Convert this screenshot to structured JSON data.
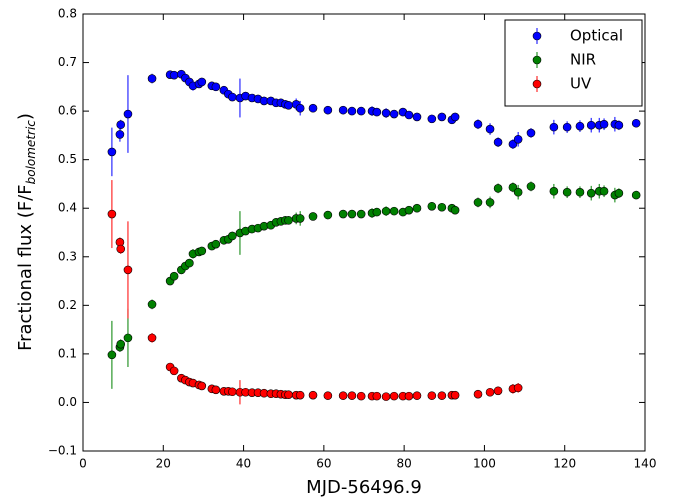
{
  "chart_data": {
    "type": "scatter",
    "xlabel": "MJD-56496.9",
    "ylabel": [
      "Fractional flux (F/F",
      "bolometric",
      ")"
    ],
    "xlim": [
      0,
      140
    ],
    "xticks": [
      0,
      20,
      40,
      60,
      80,
      100,
      120,
      140
    ],
    "ylim": [
      -0.1,
      0.8
    ],
    "yticks": [
      {
        "value": -0.1,
        "label": "−0.1"
      },
      {
        "value": 0,
        "label": "0.0"
      },
      0.1,
      0.2,
      0.3,
      0.4,
      0.5,
      0.6,
      0.7,
      0.8
    ],
    "legend": "upper right",
    "x": [
      7.2,
      9.2,
      9.4,
      11.2,
      17.2,
      21.7,
      22.7,
      24.5,
      25.5,
      26.5,
      27.4,
      28.9,
      29.6,
      32.1,
      33.1,
      35.1,
      36.2,
      37.2,
      39.1,
      40.5,
      42.1,
      43.6,
      45.1,
      46.8,
      48.1,
      49.3,
      50.4,
      51.2,
      53.1,
      54.1,
      57.3,
      61.0,
      64.8,
      67.0,
      69.3,
      72.0,
      73.2,
      75.5,
      77.5,
      79.7,
      81.2,
      83.2,
      86.9,
      89.4,
      91.9,
      92.7,
      98.4,
      101.4,
      103.4,
      107.1,
      108.4,
      111.6,
      117.3,
      120.6,
      123.8,
      126.6,
      128.6,
      129.8,
      132.5,
      133.5,
      137.8
    ],
    "series": [
      {
        "name": "Optical",
        "color": "#0000ff",
        "values": [
          0.516,
          0.552,
          0.572,
          0.594,
          0.667,
          0.675,
          0.674,
          0.676,
          0.668,
          0.66,
          0.652,
          0.656,
          0.66,
          0.652,
          0.65,
          0.643,
          0.635,
          0.629,
          0.627,
          0.631,
          0.627,
          0.625,
          0.621,
          0.621,
          0.617,
          0.617,
          0.614,
          0.612,
          0.614,
          0.606,
          0.606,
          0.602,
          0.602,
          0.6,
          0.6,
          0.6,
          0.598,
          0.596,
          0.594,
          0.598,
          0.592,
          0.588,
          0.584,
          0.588,
          0.582,
          0.588,
          0.573,
          0.563,
          0.536,
          0.532,
          0.542,
          0.555,
          0.567,
          0.567,
          0.569,
          0.571,
          0.571,
          0.573,
          0.573,
          0.571,
          0.575
        ],
        "errors": [
          0.05,
          0.015,
          0.01,
          0.08,
          0.01,
          0.008,
          0.008,
          0.008,
          0.008,
          0.008,
          0.01,
          0.008,
          0.008,
          0.008,
          0.008,
          0.008,
          0.008,
          0.008,
          0.04,
          0.008,
          0.008,
          0.008,
          0.008,
          0.008,
          0.008,
          0.008,
          0.008,
          0.008,
          0.012,
          0.015,
          0.008,
          0.008,
          0.008,
          0.008,
          0.008,
          0.01,
          0.008,
          0.01,
          0.008,
          0.008,
          0.008,
          0.008,
          0.008,
          0.008,
          0.008,
          0.008,
          0.01,
          0.012,
          0.01,
          0.01,
          0.015,
          0.01,
          0.015,
          0.012,
          0.012,
          0.015,
          0.015,
          0.012,
          0.015,
          0.01,
          0.008
        ]
      },
      {
        "name": "NIR",
        "color": "#008000",
        "values": [
          0.098,
          0.114,
          0.12,
          0.133,
          0.202,
          0.25,
          0.26,
          0.273,
          0.281,
          0.287,
          0.306,
          0.31,
          0.312,
          0.322,
          0.326,
          0.334,
          0.336,
          0.343,
          0.349,
          0.353,
          0.357,
          0.359,
          0.363,
          0.365,
          0.371,
          0.373,
          0.375,
          0.375,
          0.379,
          0.379,
          0.383,
          0.386,
          0.388,
          0.388,
          0.388,
          0.39,
          0.392,
          0.394,
          0.394,
          0.392,
          0.396,
          0.4,
          0.404,
          0.402,
          0.4,
          0.396,
          0.412,
          0.412,
          0.441,
          0.443,
          0.433,
          0.445,
          0.435,
          0.433,
          0.433,
          0.431,
          0.435,
          0.435,
          0.427,
          0.431,
          0.427
        ],
        "errors": [
          0.07,
          0.01,
          0.01,
          0.06,
          0.01,
          0.008,
          0.008,
          0.008,
          0.008,
          0.008,
          0.01,
          0.008,
          0.008,
          0.008,
          0.008,
          0.008,
          0.008,
          0.008,
          0.045,
          0.008,
          0.008,
          0.008,
          0.008,
          0.008,
          0.008,
          0.008,
          0.008,
          0.008,
          0.012,
          0.015,
          0.008,
          0.008,
          0.008,
          0.008,
          0.008,
          0.01,
          0.008,
          0.01,
          0.008,
          0.008,
          0.008,
          0.008,
          0.008,
          0.008,
          0.008,
          0.008,
          0.01,
          0.012,
          0.01,
          0.01,
          0.015,
          0.01,
          0.015,
          0.012,
          0.012,
          0.015,
          0.015,
          0.012,
          0.015,
          0.01,
          0.008
        ]
      },
      {
        "name": "UV",
        "color": "#ff0000",
        "values": [
          0.388,
          0.33,
          0.316,
          0.273,
          0.133,
          0.073,
          0.065,
          0.05,
          0.046,
          0.042,
          0.04,
          0.036,
          0.034,
          0.028,
          0.026,
          0.023,
          0.023,
          0.022,
          0.021,
          0.021,
          0.02,
          0.02,
          0.019,
          0.018,
          0.018,
          0.017,
          0.016,
          0.016,
          0.015,
          0.015,
          0.015,
          0.014,
          0.014,
          0.014,
          0.013,
          0.013,
          0.013,
          0.012,
          0.013,
          0.013,
          0.013,
          0.014,
          0.014,
          0.014,
          0.015,
          0.015,
          0.017,
          0.021,
          0.024,
          0.028,
          0.03,
          null,
          null,
          null,
          null,
          null,
          null,
          null,
          null,
          null,
          null
        ],
        "errors": [
          0.07,
          0.01,
          0.01,
          0.1,
          0.01,
          0.008,
          0.008,
          0.008,
          0.008,
          0.008,
          0.008,
          0.008,
          0.008,
          0.008,
          0.008,
          0.008,
          0.008,
          0.008,
          0.025,
          0.008,
          0.008,
          0.008,
          0.008,
          0.008,
          0.008,
          0.008,
          0.008,
          0.008,
          0.008,
          0.008,
          0.008,
          0.008,
          0.008,
          0.008,
          0.008,
          0.008,
          0.008,
          0.008,
          0.008,
          0.008,
          0.008,
          0.008,
          0.008,
          0.008,
          0.008,
          0.008,
          0.008,
          0.008,
          0.008,
          0.01,
          0.01,
          null,
          null,
          null,
          null,
          null,
          null,
          null,
          null,
          null,
          null
        ]
      }
    ]
  }
}
